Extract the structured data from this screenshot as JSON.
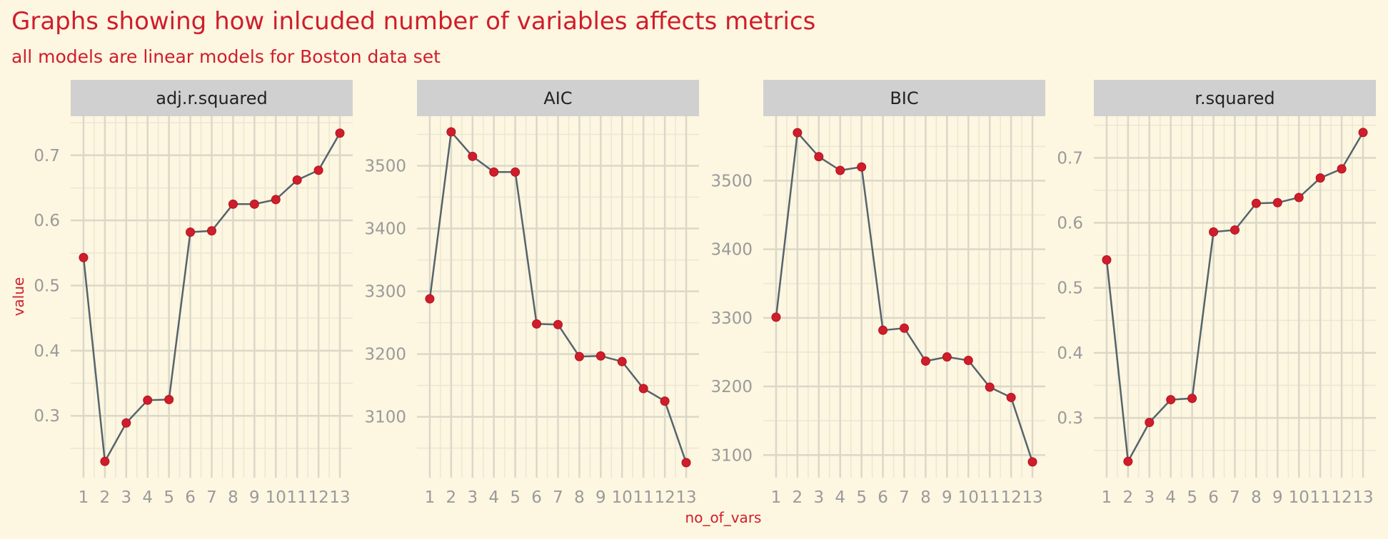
{
  "title": "Graphs showing how inlcuded number of variables affects metrics",
  "subtitle": "all models are linear models for Boston data set",
  "colors": {
    "background": "#fdf6e1",
    "strip": "#d0d0d0",
    "grid_major": "#dbd8c8",
    "grid_minor": "#ece7d2",
    "line": "#56646c",
    "point": "#cf1d2c",
    "title": "#cf1d2c",
    "axis_text": "#9a9a9a"
  },
  "chart_data": [
    {
      "type": "line",
      "facet": "adj.r.squared",
      "xlabel": "no_of_vars",
      "ylabel": "value",
      "x": [
        1,
        2,
        3,
        4,
        5,
        6,
        7,
        8,
        9,
        10,
        11,
        12,
        13
      ],
      "x_ticks": [
        "1",
        "2",
        "3",
        "4",
        "5",
        "6",
        "7",
        "8",
        "9",
        "10",
        "11",
        "12",
        "13"
      ],
      "values": [
        0.543,
        0.23,
        0.289,
        0.324,
        0.325,
        0.582,
        0.584,
        0.625,
        0.625,
        0.632,
        0.662,
        0.677,
        0.734
      ],
      "y_ticks": [
        "0.3",
        "0.4",
        "0.5",
        "0.6",
        "0.7"
      ],
      "y_tick_values": [
        0.3,
        0.4,
        0.5,
        0.6,
        0.7
      ],
      "ylim": [
        0.205,
        0.76
      ]
    },
    {
      "type": "line",
      "facet": "AIC",
      "xlabel": "no_of_vars",
      "ylabel": "value",
      "x": [
        1,
        2,
        3,
        4,
        5,
        6,
        7,
        8,
        9,
        10,
        11,
        12,
        13
      ],
      "x_ticks": [
        "1",
        "2",
        "3",
        "4",
        "5",
        "6",
        "7",
        "8",
        "9",
        "10",
        "11",
        "12",
        "13"
      ],
      "values": [
        3288,
        3554,
        3515,
        3490,
        3490,
        3248,
        3247,
        3196,
        3197,
        3188,
        3145,
        3125,
        3027
      ],
      "y_ticks": [
        "3100",
        "3200",
        "3300",
        "3400",
        "3500"
      ],
      "y_tick_values": [
        3100,
        3200,
        3300,
        3400,
        3500
      ],
      "ylim": [
        3003,
        3579
      ]
    },
    {
      "type": "line",
      "facet": "BIC",
      "xlabel": "no_of_vars",
      "ylabel": "value",
      "x": [
        1,
        2,
        3,
        4,
        5,
        6,
        7,
        8,
        9,
        10,
        11,
        12,
        13
      ],
      "x_ticks": [
        "1",
        "2",
        "3",
        "4",
        "5",
        "6",
        "7",
        "8",
        "9",
        "10",
        "11",
        "12",
        "13"
      ],
      "values": [
        3301,
        3570,
        3535,
        3515,
        3520,
        3282,
        3285,
        3237,
        3243,
        3238,
        3199,
        3184,
        3090
      ],
      "y_ticks": [
        "3100",
        "3200",
        "3300",
        "3400",
        "3500"
      ],
      "y_tick_values": [
        3100,
        3200,
        3300,
        3400,
        3500
      ],
      "ylim": [
        3067,
        3594
      ]
    },
    {
      "type": "line",
      "facet": "r.squared",
      "xlabel": "no_of_vars",
      "ylabel": "value",
      "x": [
        1,
        2,
        3,
        4,
        5,
        6,
        7,
        8,
        9,
        10,
        11,
        12,
        13
      ],
      "x_ticks": [
        "1",
        "2",
        "3",
        "4",
        "5",
        "6",
        "7",
        "8",
        "9",
        "10",
        "11",
        "12",
        "13"
      ],
      "values": [
        0.543,
        0.233,
        0.293,
        0.328,
        0.33,
        0.586,
        0.589,
        0.63,
        0.631,
        0.639,
        0.669,
        0.683,
        0.739
      ],
      "y_ticks": [
        "0.3",
        "0.4",
        "0.5",
        "0.6",
        "0.7"
      ],
      "y_tick_values": [
        0.3,
        0.4,
        0.5,
        0.6,
        0.7
      ],
      "ylim": [
        0.208,
        0.764
      ]
    }
  ]
}
